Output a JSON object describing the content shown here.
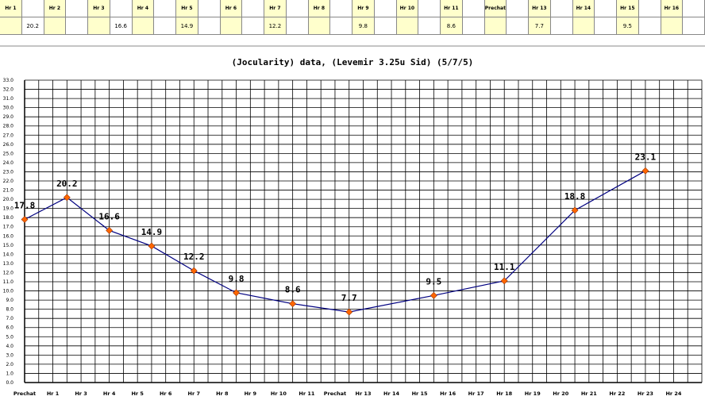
{
  "header_table": {
    "columns": [
      "Hr 1",
      "",
      "Hr 2",
      "",
      "Hr 3",
      "",
      "Hr 4",
      "",
      "Hr 5",
      "",
      "Hr 6",
      "",
      "Hr 7",
      "",
      "Hr 8",
      "",
      "Hr 9",
      "",
      "Hr 10",
      "",
      "Hr 11",
      "",
      "Prechat",
      "",
      "Hr 13",
      "",
      "Hr 14",
      "",
      "Hr 15",
      "",
      "Hr 16"
    ],
    "row_values": [
      "",
      "20.2",
      "",
      "",
      "",
      "16.6",
      "",
      "",
      "14.9",
      "",
      "",
      "",
      "12.2",
      "",
      "",
      "",
      "9.8",
      "",
      "",
      "",
      "8.6",
      "",
      "",
      "",
      "7.7",
      "",
      "",
      "",
      "9.5",
      "",
      "",
      ""
    ],
    "header_color": "#ffffcc"
  },
  "chart_data": {
    "type": "line",
    "title": "(Jocularity) data, (Levemir 3.25u Sid) (5/7/5)",
    "categories": [
      "Prechat",
      "Hr 1",
      "Hr 3",
      "Hr 4",
      "Hr 5",
      "Hr 6",
      "Hr 7",
      "Hr 8",
      "Hr 9",
      "Hr 10",
      "Hr 11",
      "Prechat",
      "Hr 13",
      "Hr 14",
      "Hr 15",
      "Hr 16",
      "Hr 17",
      "Hr 18",
      "Hr 19",
      "Hr 20",
      "Hr 21",
      "Hr 22",
      "Hr 23",
      "Hr 24"
    ],
    "series": [
      {
        "points": [
          {
            "x": 0.0,
            "y": 17.8,
            "label": "17.8"
          },
          {
            "x": 1.5,
            "y": 20.2,
            "label": "20.2"
          },
          {
            "x": 3.0,
            "y": 16.6,
            "label": "16.6"
          },
          {
            "x": 4.5,
            "y": 14.9,
            "label": "14.9"
          },
          {
            "x": 6.0,
            "y": 12.2,
            "label": "12.2"
          },
          {
            "x": 7.5,
            "y": 9.8,
            "label": "9.8"
          },
          {
            "x": 9.5,
            "y": 8.6,
            "label": "8.6"
          },
          {
            "x": 11.5,
            "y": 7.7,
            "label": "7.7"
          },
          {
            "x": 14.5,
            "y": 9.5,
            "label": "9.5"
          },
          {
            "x": 17.0,
            "y": 11.1,
            "label": "11.1"
          },
          {
            "x": 19.5,
            "y": 18.8,
            "label": "18.8"
          },
          {
            "x": 22.0,
            "y": 23.1,
            "label": "23.1"
          }
        ]
      }
    ],
    "ylim": [
      0,
      33
    ],
    "ytick_step": 1,
    "grid": true,
    "line_color": "#000080",
    "marker_color": "#ff6600"
  }
}
